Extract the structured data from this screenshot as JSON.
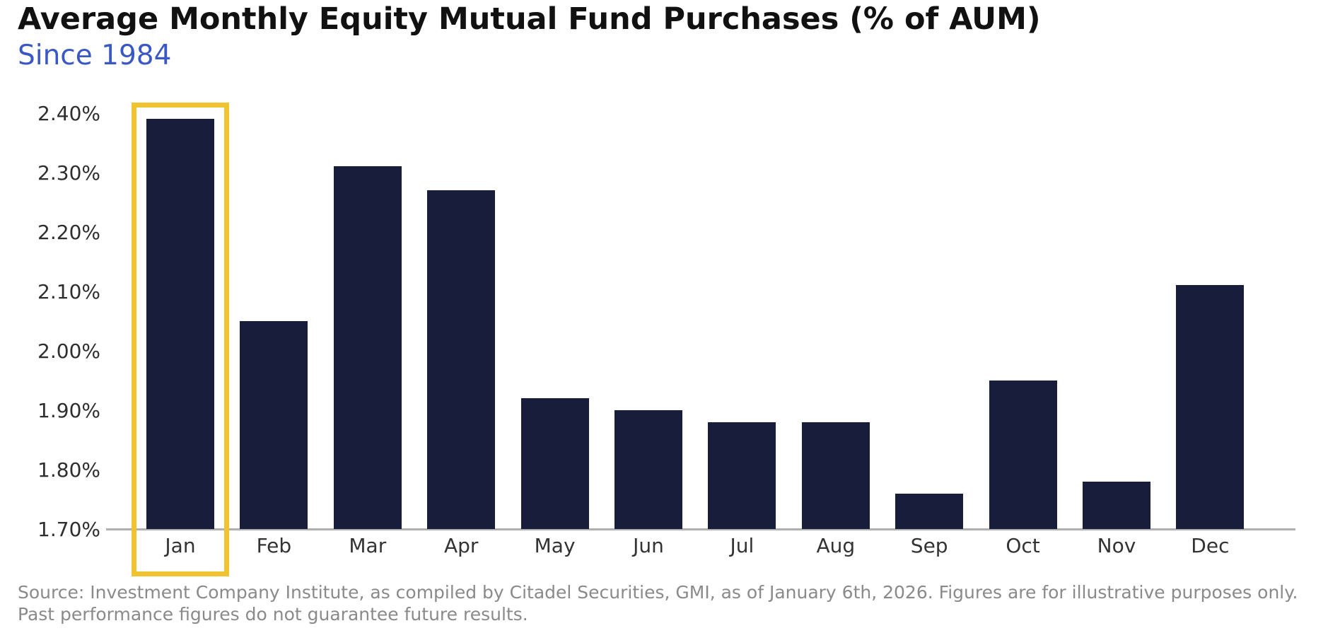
{
  "title": "Average Monthly Equity Mutual Fund Purchases (% of AUM)",
  "subtitle": "Since 1984",
  "source": {
    "line1": "Source: Investment Company Institute, as compiled by Citadel Securities, GMI, as of January 6th, 2026. Figures are for illustrative purposes only.",
    "line2": "Past performance figures do not guarantee future results."
  },
  "colors": {
    "bar": "#181d3c",
    "highlight": "#f0c330",
    "subtitle_text": "#3a58c4",
    "title_text": "#111111",
    "axis_line": "#b0b0b0",
    "tick_text": "#2e2e2e",
    "xlabel_text": "#333333",
    "source_text": "#8a8a8a"
  },
  "chart_data": {
    "type": "bar",
    "title": "Average Monthly Equity Mutual Fund Purchases (% of AUM)",
    "subtitle": "Since 1984",
    "categories": [
      "Jan",
      "Feb",
      "Mar",
      "Apr",
      "May",
      "Jun",
      "Jul",
      "Aug",
      "Sep",
      "Oct",
      "Nov",
      "Dec"
    ],
    "values": [
      2.39,
      2.05,
      2.31,
      2.27,
      1.92,
      1.9,
      1.88,
      1.88,
      1.76,
      1.95,
      1.78,
      2.11
    ],
    "xlabel": "",
    "ylabel": "",
    "ylim": [
      1.7,
      2.4
    ],
    "ytick_step": 0.1,
    "yticks": [
      "2.40%",
      "2.30%",
      "2.20%",
      "2.10%",
      "2.00%",
      "1.90%",
      "1.80%",
      "1.70%"
    ],
    "grid": false,
    "legend": "none",
    "bar_color": "#181d3c",
    "highlighted_category": "Jan",
    "highlight_box_color": "#f0c330"
  }
}
